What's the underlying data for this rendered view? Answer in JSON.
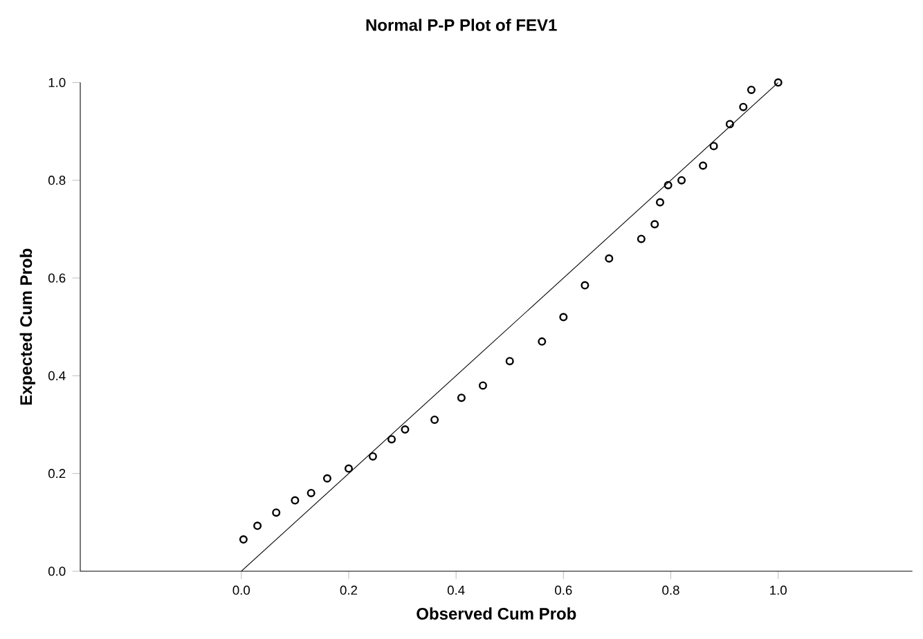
{
  "chart_data": {
    "type": "scatter",
    "title": "Normal P-P Plot of FEV1",
    "xlabel": "Observed Cum Prob",
    "ylabel": "Expected Cum Prob",
    "xlim": [
      -0.3,
      1.25
    ],
    "ylim": [
      0,
      1
    ],
    "xticks": [
      {
        "value": 0,
        "label": "0.0"
      },
      {
        "value": 0.2,
        "label": "0.2"
      },
      {
        "value": 0.4,
        "label": "0.4"
      },
      {
        "value": 0.6,
        "label": "0.6"
      },
      {
        "value": 0.8,
        "label": "0.8"
      },
      {
        "value": 1,
        "label": "1.0"
      }
    ],
    "yticks": [
      {
        "value": 0,
        "label": "0.0"
      },
      {
        "value": 0.2,
        "label": "0.2"
      },
      {
        "value": 0.4,
        "label": "0.4"
      },
      {
        "value": 0.6,
        "label": "0.6"
      },
      {
        "value": 0.8,
        "label": "0.8"
      },
      {
        "value": 1,
        "label": "1.0"
      }
    ],
    "marker": "circle",
    "grid": false,
    "series": [
      {
        "color": "#000000",
        "x": [
          0.004,
          0.03,
          0.065,
          0.1,
          0.13,
          0.16,
          0.2,
          0.245,
          0.28,
          0.305,
          0.36,
          0.41,
          0.45,
          0.5,
          0.56,
          0.6,
          0.64,
          0.685,
          0.745,
          0.77,
          0.78,
          0.795,
          0.82,
          0.86,
          0.88,
          0.91,
          0.935,
          0.95,
          1.0
        ],
        "values": [
          0.065,
          0.093,
          0.12,
          0.145,
          0.16,
          0.19,
          0.21,
          0.235,
          0.27,
          0.29,
          0.31,
          0.355,
          0.38,
          0.43,
          0.47,
          0.52,
          0.585,
          0.64,
          0.68,
          0.71,
          0.755,
          0.79,
          0.8,
          0.83,
          0.87,
          0.915,
          0.95,
          0.985,
          1.0
        ]
      },
      {
        "type": "line",
        "color": "#000000",
        "marker": "none",
        "x": [
          0,
          1
        ],
        "values": [
          0,
          1
        ]
      }
    ]
  }
}
